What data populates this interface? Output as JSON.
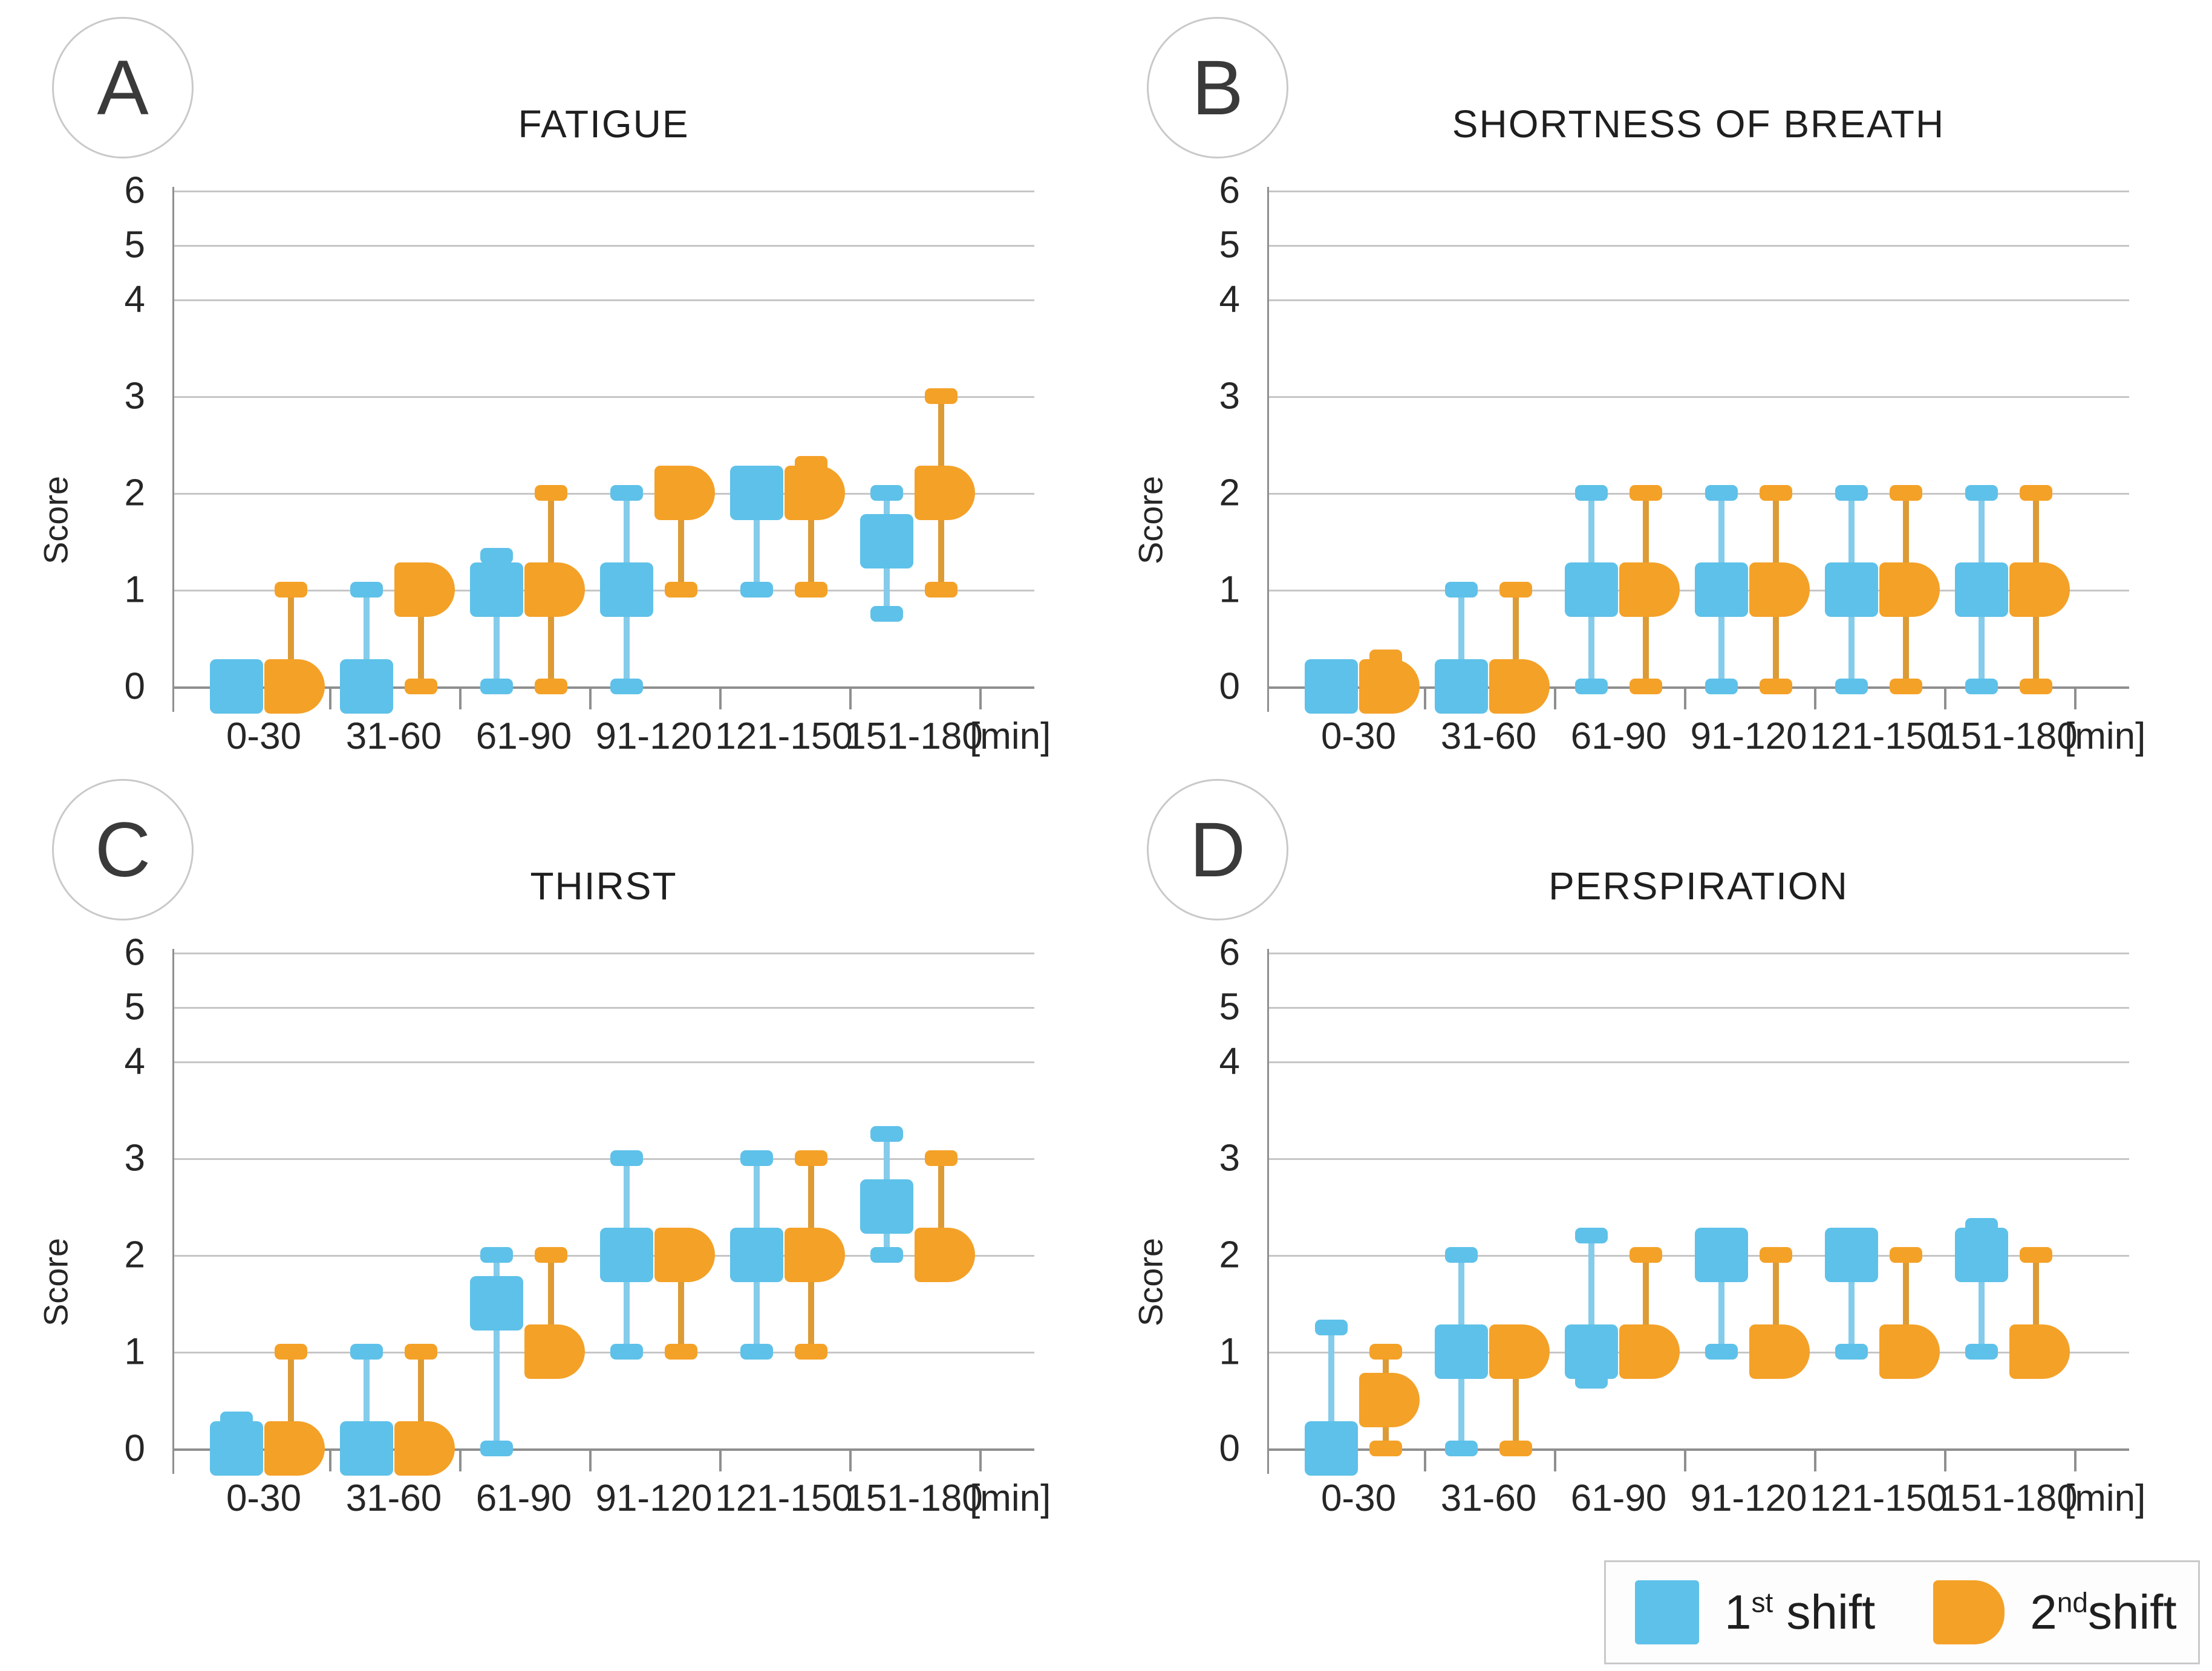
{
  "figure": {
    "y_axis_label": "Score",
    "x_unit_label": "[min]",
    "y_ticks": [
      "0",
      "1",
      "2",
      "3",
      "4",
      "5",
      "6"
    ]
  },
  "legend": {
    "first": {
      "num": "1",
      "ord": "st",
      "rest": " shift"
    },
    "second": {
      "num": "2",
      "ord": "nd",
      "rest": "shift"
    }
  },
  "colors": {
    "first_fill": "#5EC1E9",
    "first_line": "#85CBEA",
    "second_fill": "#F4A128",
    "second_line": "#DD9B35",
    "grid": "#C6C6C6",
    "axis": "#8F8F8F"
  },
  "chart_data": {
    "type": "box-whisker-median",
    "description": "Median (box marker) with min-max whiskers of symptom scores per 30-min interval, two series per interval",
    "categories": [
      "0-30",
      "31-60",
      "61-90",
      "91-120",
      "121-150",
      "151-180"
    ],
    "x_unit": "[min]",
    "ylabel": "Score",
    "ylim": [
      0,
      6
    ],
    "y_axis_note": "tick spacing compressed above score 4",
    "series_names": [
      "1st shift",
      "2nd shift"
    ],
    "panels": [
      {
        "letter": "A",
        "title": "FATIGUE",
        "first": [
          {
            "m": 0,
            "lo": null,
            "hi": null
          },
          {
            "m": 0,
            "lo": null,
            "hi": 1
          },
          {
            "m": 1,
            "lo": 0,
            "hi": 1.35
          },
          {
            "m": 1,
            "lo": 0,
            "hi": 2
          },
          {
            "m": 2,
            "lo": 1,
            "hi": null
          },
          {
            "m": 1.5,
            "lo": 0.75,
            "hi": 2
          }
        ],
        "second": [
          {
            "m": 0,
            "lo": null,
            "hi": 1
          },
          {
            "m": 1,
            "lo": 0,
            "hi": null
          },
          {
            "m": 1,
            "lo": 0,
            "hi": 2
          },
          {
            "m": 2,
            "lo": 1,
            "hi": null
          },
          {
            "m": 2,
            "lo": 1,
            "hi": 2.3
          },
          {
            "m": 2,
            "lo": 1,
            "hi": 3
          }
        ]
      },
      {
        "letter": "B",
        "title": "SHORTNESS OF BREATH",
        "first": [
          {
            "m": 0,
            "lo": null,
            "hi": null
          },
          {
            "m": 0,
            "lo": null,
            "hi": 1
          },
          {
            "m": 1,
            "lo": 0,
            "hi": 2
          },
          {
            "m": 1,
            "lo": 0,
            "hi": 2
          },
          {
            "m": 1,
            "lo": 0,
            "hi": 2
          },
          {
            "m": 1,
            "lo": 0,
            "hi": 2
          }
        ],
        "second": [
          {
            "m": 0,
            "lo": null,
            "hi": 0.3
          },
          {
            "m": 0,
            "lo": null,
            "hi": 1
          },
          {
            "m": 1,
            "lo": 0,
            "hi": 2
          },
          {
            "m": 1,
            "lo": 0,
            "hi": 2
          },
          {
            "m": 1,
            "lo": 0,
            "hi": 2
          },
          {
            "m": 1,
            "lo": 0,
            "hi": 2
          }
        ]
      },
      {
        "letter": "C",
        "title": "THIRST",
        "first": [
          {
            "m": 0,
            "lo": null,
            "hi": 0.3
          },
          {
            "m": 0,
            "lo": null,
            "hi": 1
          },
          {
            "m": 1.5,
            "lo": 0,
            "hi": 2
          },
          {
            "m": 2,
            "lo": 1,
            "hi": 3
          },
          {
            "m": 2,
            "lo": 1,
            "hi": 3
          },
          {
            "m": 2.5,
            "lo": 2,
            "hi": 3.25
          }
        ],
        "second": [
          {
            "m": 0,
            "lo": null,
            "hi": 1
          },
          {
            "m": 0,
            "lo": null,
            "hi": 1
          },
          {
            "m": 1,
            "lo": null,
            "hi": 2
          },
          {
            "m": 2,
            "lo": 1,
            "hi": null
          },
          {
            "m": 2,
            "lo": 1,
            "hi": 3
          },
          {
            "m": 2,
            "lo": null,
            "hi": 3
          }
        ]
      },
      {
        "letter": "D",
        "title": "PERSPIRATION",
        "first": [
          {
            "m": 0,
            "lo": null,
            "hi": 1.25
          },
          {
            "m": 1,
            "lo": 0,
            "hi": 2
          },
          {
            "m": 1,
            "lo": 0.7,
            "hi": 2.2
          },
          {
            "m": 2,
            "lo": 1,
            "hi": null
          },
          {
            "m": 2,
            "lo": 1,
            "hi": null
          },
          {
            "m": 2,
            "lo": 1,
            "hi": 2.3
          }
        ],
        "second": [
          {
            "m": 0.5,
            "lo": 0,
            "hi": 1
          },
          {
            "m": 1,
            "lo": 0,
            "hi": null
          },
          {
            "m": 1,
            "lo": null,
            "hi": 2
          },
          {
            "m": 1,
            "lo": null,
            "hi": 2
          },
          {
            "m": 1,
            "lo": null,
            "hi": 2
          },
          {
            "m": 1,
            "lo": null,
            "hi": 2
          }
        ]
      }
    ]
  }
}
